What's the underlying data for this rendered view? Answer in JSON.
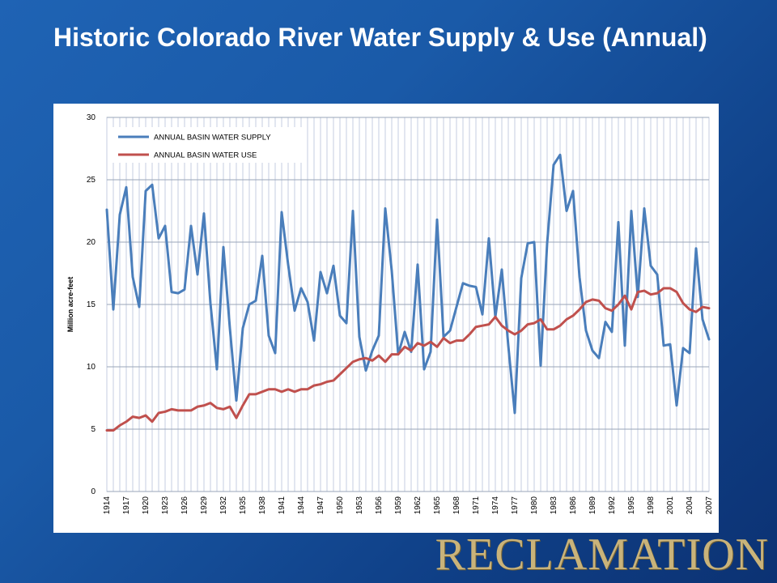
{
  "slide": {
    "title": "Historic Colorado River Water Supply & Use (Annual)",
    "logo_text": "RECLAMATION"
  },
  "colors": {
    "supply": "#4a7ebb",
    "use": "#c0504d",
    "accent_logo": "#c9b37a"
  },
  "chart_data": {
    "type": "line",
    "title": "",
    "xlabel": "",
    "ylabel": "Million acre-feet",
    "ylim": [
      0,
      30
    ],
    "yticks": [
      0,
      5,
      10,
      15,
      20,
      25,
      30
    ],
    "xlim": [
      1914,
      2007
    ],
    "x": [
      1914,
      1915,
      1916,
      1917,
      1918,
      1919,
      1920,
      1921,
      1922,
      1923,
      1924,
      1925,
      1926,
      1927,
      1928,
      1929,
      1930,
      1931,
      1932,
      1933,
      1934,
      1935,
      1936,
      1937,
      1938,
      1939,
      1940,
      1941,
      1942,
      1943,
      1944,
      1945,
      1946,
      1947,
      1948,
      1949,
      1950,
      1951,
      1952,
      1953,
      1954,
      1955,
      1956,
      1957,
      1958,
      1959,
      1960,
      1961,
      1962,
      1963,
      1964,
      1965,
      1966,
      1967,
      1968,
      1969,
      1970,
      1971,
      1972,
      1973,
      1974,
      1975,
      1976,
      1977,
      1978,
      1979,
      1980,
      1981,
      1982,
      1983,
      1984,
      1985,
      1986,
      1987,
      1988,
      1989,
      1990,
      1991,
      1992,
      1993,
      1994,
      1995,
      1996,
      1997,
      1998,
      1999,
      2000,
      2001,
      2002,
      2003,
      2004,
      2005,
      2006,
      2007
    ],
    "xtick_labels": [
      "1914",
      "1917",
      "1920",
      "1923",
      "1926",
      "1929",
      "1932",
      "1935",
      "1938",
      "1941",
      "1944",
      "1947",
      "1950",
      "1953",
      "1956",
      "1959",
      "1962",
      "1965",
      "1968",
      "1971",
      "1974",
      "1977",
      "1980",
      "1983",
      "1986",
      "1989",
      "1992",
      "1995",
      "1998",
      "2001",
      "2004",
      "2007"
    ],
    "grid": true,
    "legend": "top-left",
    "series": [
      {
        "name": "ANNUAL BASIN WATER SUPPLY",
        "color": "#4a7ebb",
        "values": [
          22.6,
          14.6,
          22.2,
          24.4,
          17.2,
          14.8,
          24.1,
          24.6,
          20.3,
          21.3,
          16.0,
          15.9,
          16.2,
          21.3,
          17.4,
          22.3,
          15.1,
          9.8,
          19.6,
          13.1,
          7.3,
          13.1,
          15.0,
          15.3,
          18.9,
          12.5,
          11.1,
          22.4,
          18.2,
          14.5,
          16.3,
          15.2,
          12.1,
          17.6,
          15.9,
          18.1,
          14.1,
          13.5,
          22.5,
          12.4,
          9.7,
          11.3,
          12.5,
          22.7,
          17.7,
          11.0,
          12.8,
          11.2,
          18.2,
          9.8,
          11.2,
          21.8,
          12.4,
          12.9,
          14.8,
          16.7,
          16.5,
          16.4,
          14.2,
          20.3,
          14.0,
          17.8,
          11.7,
          6.3,
          17.1,
          19.9,
          20.0,
          10.1,
          19.9,
          26.2,
          27.0,
          22.5,
          24.1,
          17.2,
          12.9,
          11.3,
          10.7,
          13.6,
          12.8,
          21.6,
          11.7,
          22.5,
          15.6,
          22.7,
          18.1,
          17.4,
          11.7,
          11.8,
          6.9,
          11.5,
          11.1,
          19.5,
          13.8,
          12.2
        ]
      },
      {
        "name": "ANNUAL BASIN WATER USE",
        "color": "#c0504d",
        "values": [
          4.9,
          4.9,
          5.3,
          5.6,
          6.0,
          5.9,
          6.1,
          5.6,
          6.3,
          6.4,
          6.6,
          6.5,
          6.5,
          6.5,
          6.8,
          6.9,
          7.1,
          6.7,
          6.6,
          6.8,
          5.9,
          6.9,
          7.8,
          7.8,
          8.0,
          8.2,
          8.2,
          8.0,
          8.2,
          8.0,
          8.2,
          8.2,
          8.5,
          8.6,
          8.8,
          8.9,
          9.4,
          9.9,
          10.4,
          10.6,
          10.7,
          10.5,
          10.9,
          10.4,
          11.0,
          11.0,
          11.6,
          11.3,
          11.9,
          11.7,
          12.0,
          11.6,
          12.3,
          11.9,
          12.1,
          12.1,
          12.6,
          13.2,
          13.3,
          13.4,
          14.0,
          13.3,
          12.9,
          12.6,
          12.9,
          13.4,
          13.5,
          13.8,
          13.0,
          13.0,
          13.3,
          13.8,
          14.1,
          14.6,
          15.2,
          15.4,
          15.3,
          14.7,
          14.5,
          15.0,
          15.7,
          14.6,
          16.0,
          16.1,
          15.8,
          15.9,
          16.3,
          16.3,
          16.0,
          15.1,
          14.6,
          14.4,
          14.8,
          14.7
        ]
      }
    ]
  }
}
